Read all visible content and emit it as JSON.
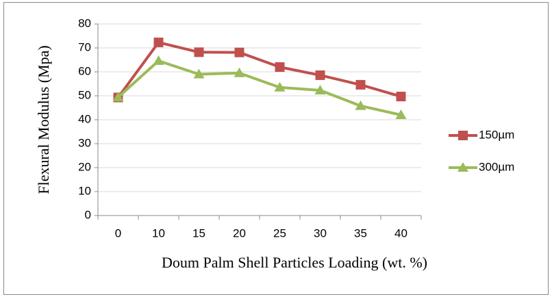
{
  "chart_data": {
    "type": "line",
    "x_label": "Doum Palm Shell Particles Loading (wt. %)",
    "y_label": "Flexural Modulus (Mpa)",
    "categories": [
      "0",
      "10",
      "15",
      "20",
      "25",
      "30",
      "35",
      "40"
    ],
    "series": [
      {
        "name": "150µm",
        "color": "#c0504d",
        "marker": "square",
        "values": [
          49.3,
          72.3,
          68.2,
          68.1,
          62,
          58.6,
          54.6,
          49.7
        ]
      },
      {
        "name": "300µm",
        "color": "#9bbb59",
        "marker": "triangle",
        "values": [
          49.4,
          64.6,
          59,
          59.5,
          53.5,
          52.3,
          45.8,
          42
        ]
      }
    ],
    "ylim": [
      0,
      80
    ],
    "yticks": [
      0,
      10,
      20,
      30,
      40,
      50,
      60,
      70,
      80
    ],
    "grid": true,
    "legend": "right"
  }
}
